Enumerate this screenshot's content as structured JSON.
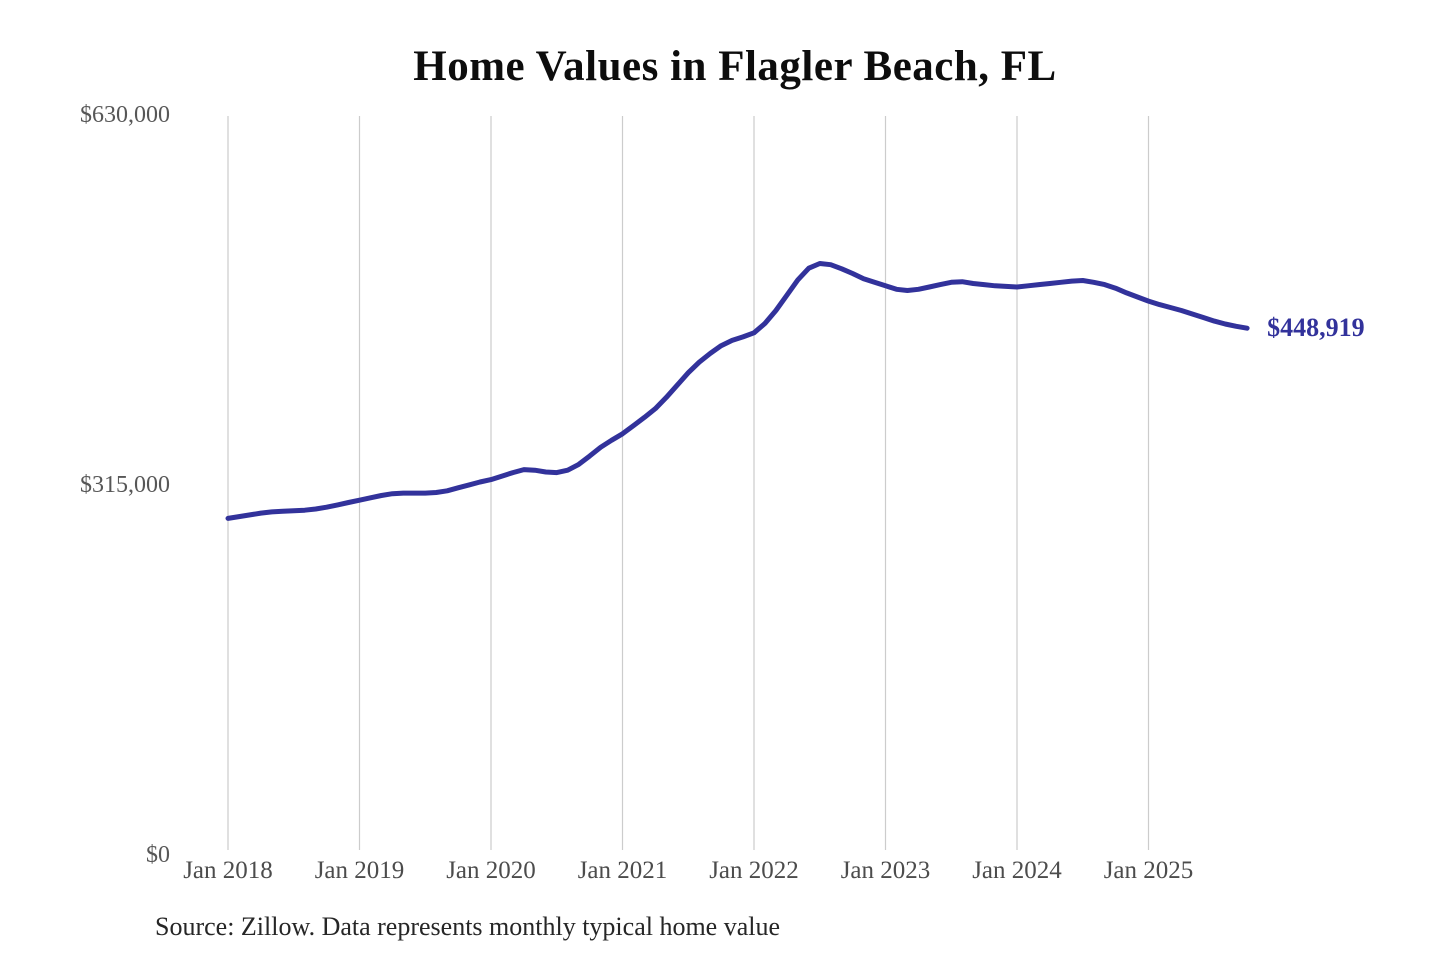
{
  "chart_data": {
    "type": "line",
    "title": "Home Values in Flagler Beach, FL",
    "source_note": "Source: Zillow. Data represents monthly typical home value",
    "series_name": "Typical home value",
    "frequency": "monthly",
    "start_month": "Jan 2018",
    "end_month": "Oct 2025",
    "x_tick_labels": [
      "Jan 2018",
      "Jan 2019",
      "Jan 2020",
      "Jan 2021",
      "Jan 2022",
      "Jan 2023",
      "Jan 2024",
      "Jan 2025"
    ],
    "y_ticks": [
      {
        "label": "$0",
        "value": 0
      },
      {
        "label": "$315,000",
        "value": 315000
      },
      {
        "label": "$630,000",
        "value": 630000
      }
    ],
    "ylim": [
      0,
      630000
    ],
    "grid": "vertical-only",
    "legend": "none",
    "end_label": "$448,919",
    "end_value": 448919,
    "monthly_values": [
      287000,
      288500,
      290000,
      291500,
      292500,
      293000,
      293500,
      294000,
      295000,
      296500,
      298500,
      300500,
      302500,
      304500,
      306500,
      308000,
      308500,
      308500,
      308500,
      309000,
      310500,
      313000,
      315500,
      318000,
      320000,
      323000,
      326000,
      328500,
      328000,
      326500,
      326000,
      328000,
      333000,
      340000,
      347500,
      353500,
      359000,
      366000,
      373000,
      380500,
      390000,
      400500,
      411000,
      420000,
      427500,
      434000,
      438500,
      441500,
      445000,
      453000,
      464000,
      477000,
      490000,
      500000,
      504000,
      503000,
      499500,
      495500,
      491000,
      488000,
      485000,
      482000,
      481000,
      482000,
      484000,
      486000,
      488000,
      488500,
      487000,
      486000,
      485000,
      484500,
      484000,
      485000,
      486000,
      487000,
      488000,
      489000,
      489500,
      488000,
      486000,
      483000,
      479000,
      475500,
      472000,
      469000,
      466500,
      464000,
      461000,
      458000,
      455000,
      452500,
      450500,
      448919
    ],
    "colors": {
      "line": "#32329B",
      "end_label": "#32329B",
      "grid": "#CCCCCC",
      "y_axis_text": "#575757",
      "x_axis_text": "#4C4C4C",
      "title": "#0D0D0D",
      "source_text": "#262626"
    }
  }
}
